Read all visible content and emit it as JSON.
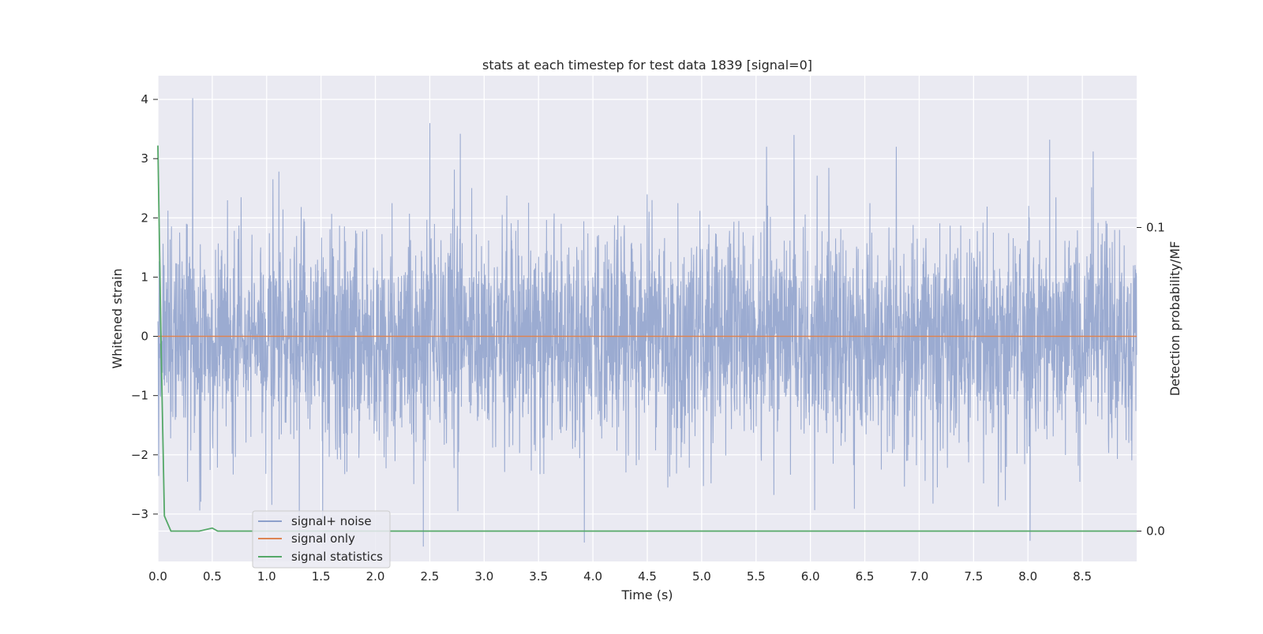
{
  "chart_data": {
    "type": "line",
    "title": "stats at each timestep for test data 1839 [signal=0]",
    "xlabel": "Time (s)",
    "ylabel": "Whitened strain",
    "ylabel_right": "Detection probability/MF",
    "xlim": [
      0.0,
      9.0
    ],
    "ylim": [
      -3.8,
      4.4
    ],
    "ylim_right": [
      -0.01,
      0.15
    ],
    "x_ticks": [
      0.0,
      0.5,
      1.0,
      1.5,
      2.0,
      2.5,
      3.0,
      3.5,
      4.0,
      4.5,
      5.0,
      5.5,
      6.0,
      6.5,
      7.0,
      7.5,
      8.0,
      8.5
    ],
    "x_tick_labels": [
      "0.0",
      "0.5",
      "1.0",
      "1.5",
      "2.0",
      "2.5",
      "3.0",
      "3.5",
      "4.0",
      "4.5",
      "5.0",
      "5.5",
      "6.0",
      "6.5",
      "7.0",
      "7.5",
      "8.0",
      "8.5"
    ],
    "y_ticks": [
      -3,
      -2,
      -1,
      0,
      1,
      2,
      3,
      4
    ],
    "y_tick_labels": [
      "−3",
      "−2",
      "−1",
      "0",
      "1",
      "2",
      "3",
      "4"
    ],
    "y_right_ticks": [
      0.0,
      0.1
    ],
    "y_right_tick_labels": [
      "0.0",
      "0.1"
    ],
    "grid": true,
    "legend_position": "lower-left",
    "series": [
      {
        "name": "signal+ noise",
        "color": "#8da0cb",
        "axis": "left",
        "kind": "noise",
        "t_max": 9.0,
        "approx_peaks": [
          [
            0.32,
            4.02
          ],
          [
            2.5,
            3.6
          ],
          [
            2.78,
            3.42
          ],
          [
            5.85,
            3.4
          ],
          [
            8.2,
            3.32
          ],
          [
            8.6,
            3.12
          ],
          [
            2.44,
            -3.55
          ],
          [
            3.92,
            -3.48
          ],
          [
            8.02,
            -3.45
          ],
          [
            1.3,
            -3.3
          ]
        ]
      },
      {
        "name": "signal only",
        "color": "#dd8452",
        "axis": "left",
        "x": [
          0.0,
          9.0
        ],
        "y": [
          0.0,
          0.0
        ]
      },
      {
        "name": "signal statistics",
        "color": "#55a868",
        "axis": "right",
        "x": [
          0.0,
          0.03,
          0.06,
          0.12,
          0.25,
          0.38,
          0.5,
          0.55,
          0.7,
          1.0,
          2.0,
          3.0,
          4.0,
          5.0,
          6.0,
          7.0,
          8.0,
          9.0
        ],
        "y": [
          0.127,
          0.06,
          0.005,
          0.0,
          0.0,
          0.0,
          0.001,
          0.0,
          0.0,
          0.0,
          0.0,
          0.0,
          0.0,
          0.0,
          0.0,
          0.0,
          0.0,
          0.0
        ]
      }
    ]
  }
}
